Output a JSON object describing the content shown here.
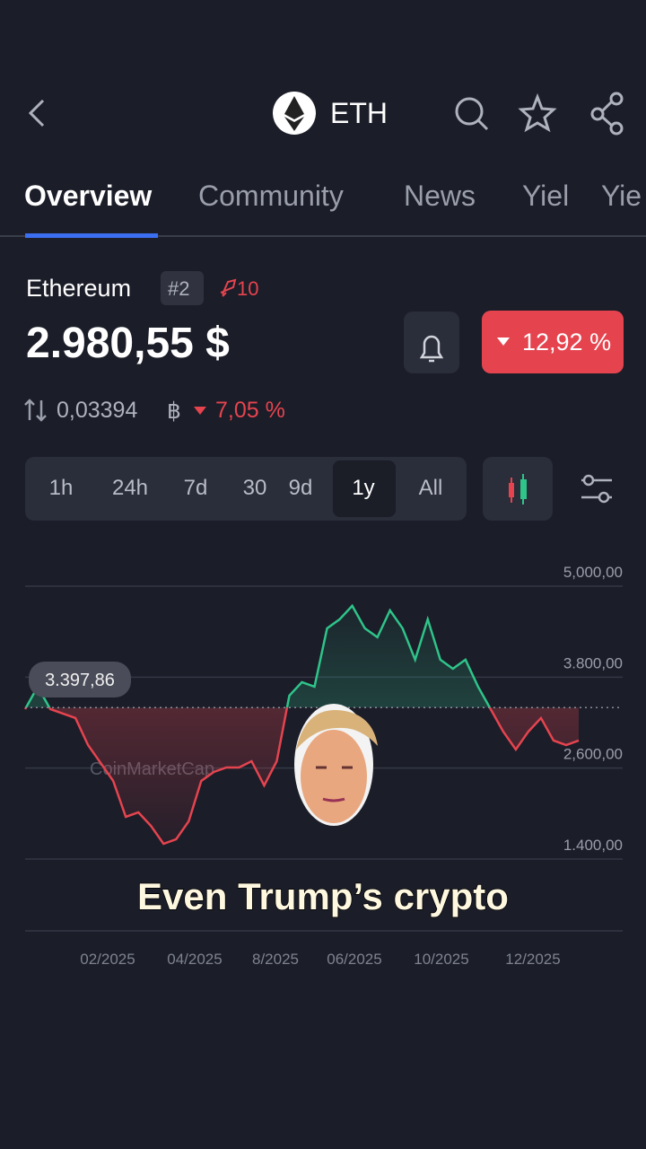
{
  "header": {
    "symbol": "ETH"
  },
  "tabs": [
    "Overview",
    "Community",
    "News",
    "Yiel",
    "Yie"
  ],
  "coin": {
    "name": "Ethereum",
    "rank": "#2",
    "watchlist": "10",
    "price": "2.980,55 $",
    "change": "12,92 %",
    "btc_price": "0,03394",
    "btc_symbol": "฿",
    "btc_change": "7,05 %"
  },
  "ranges": [
    "1h",
    "24h",
    "7d",
    "30",
    "9d",
    "1y",
    "All"
  ],
  "chart_data": {
    "type": "line",
    "values": [
      3378,
      3674,
      3378,
      3319,
      3260,
      2904,
      2668,
      2431,
      1957,
      2016,
      1838,
      1601,
      1661,
      1898,
      2431,
      2549,
      2608,
      2608,
      2691,
      2371,
      2691,
      3556,
      3734,
      3674,
      4444,
      4563,
      4741,
      4444,
      4326,
      4681,
      4444,
      4030,
      4563,
      4030,
      3911,
      4030,
      3674,
      3378,
      3082,
      2845,
      3082,
      3260,
      2964,
      2904,
      2964
    ],
    "reference": {
      "value": 3397.86,
      "label": "3.397,86"
    },
    "colors": {
      "up": "#2fc48a",
      "down": "#e5444f"
    },
    "ylim": [
      1400,
      5000
    ],
    "yticks": [
      {
        "value": 5000,
        "label": "5,000,00"
      },
      {
        "value": 3800,
        "label": "3.800,00"
      },
      {
        "value": 2600,
        "label": "2,600,00"
      },
      {
        "value": 1400,
        "label": "1.400,00"
      }
    ],
    "x_labels": [
      "02/2025",
      "04/2025",
      "8/2025",
      "06/2025",
      "10/2025",
      "12/2025"
    ],
    "watermark": "CoinMarketCap"
  },
  "caption": "Even Trump’s crypto"
}
